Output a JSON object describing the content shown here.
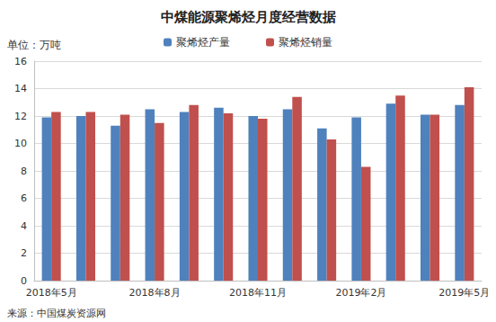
{
  "chart_data": {
    "type": "bar",
    "title": "中煤能源聚烯烃月度经营数据",
    "ylabel": "单位：万吨",
    "annotations": [
      "来源：中国煤炭资源网"
    ],
    "categories": [
      "2018年5月",
      null,
      null,
      "2018年8月",
      null,
      null,
      "2018年11月",
      null,
      null,
      "2019年2月",
      null,
      null,
      "2019年5月"
    ],
    "series": [
      {
        "name": "聚烯烃产量",
        "color": "#4f81bd",
        "values": [
          11.9,
          12.0,
          11.3,
          12.5,
          12.3,
          12.6,
          12.0,
          12.5,
          11.1,
          11.9,
          12.9,
          12.1,
          12.8
        ]
      },
      {
        "name": "聚烯烃销量",
        "color": "#c0504d",
        "values": [
          12.3,
          12.3,
          12.1,
          11.5,
          12.8,
          12.2,
          11.8,
          13.4,
          10.3,
          8.3,
          13.5,
          12.1,
          14.1
        ]
      }
    ],
    "ylim": [
      0,
      16
    ],
    "yticks": [
      0,
      2,
      4,
      6,
      8,
      10,
      12,
      14,
      16
    ],
    "grid": true,
    "legend": "top"
  }
}
